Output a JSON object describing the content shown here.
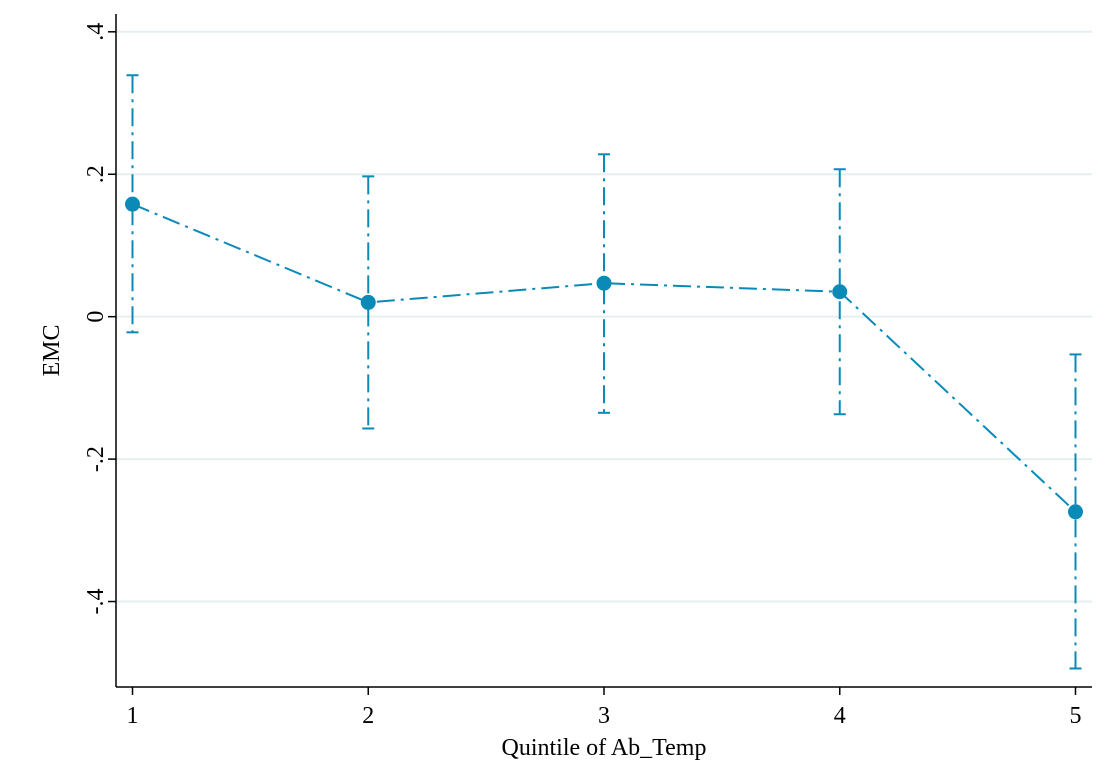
{
  "chart_data": {
    "type": "line",
    "xlabel": "Quintile of Ab_Temp",
    "ylabel": "EMC",
    "x_ticks": [
      1,
      2,
      3,
      4,
      5
    ],
    "x_tick_labels": [
      "1",
      "2",
      "3",
      "4",
      "5"
    ],
    "y_ticks": [
      -0.4,
      -0.2,
      0,
      0.2,
      0.4
    ],
    "y_tick_labels": [
      "-.4",
      "-.2",
      "0",
      ".2",
      ".4"
    ],
    "xlim": [
      0.93,
      5.07
    ],
    "ylim": [
      -0.52,
      0.425
    ],
    "grid": true,
    "series": [
      {
        "x": [
          1,
          2,
          3,
          4,
          5
        ],
        "values": [
          0.158,
          0.02,
          0.047,
          0.035,
          -0.274
        ],
        "ci_low": [
          -0.022,
          -0.157,
          -0.135,
          -0.137,
          -0.494
        ],
        "ci_high": [
          0.339,
          0.197,
          0.228,
          0.207,
          -0.053
        ],
        "color": "#0b8ab8"
      }
    ]
  }
}
